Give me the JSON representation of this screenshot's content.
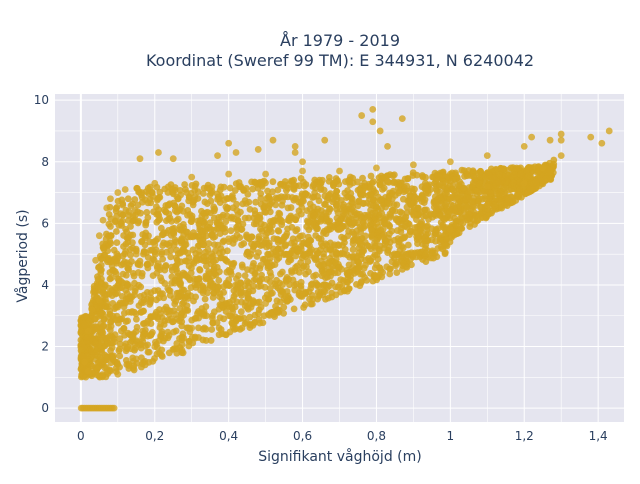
{
  "chart_data": {
    "type": "scatter",
    "title_line1": "År 1979 - 2019",
    "title_line2": "Koordinat (Sweref 99 TM): E 344931, N 6240042",
    "xlabel": "Signifikant våghöjd (m)",
    "ylabel": "Vågperiod (s)",
    "xlim": [
      -0.07,
      1.47
    ],
    "ylim": [
      -0.45,
      10.2
    ],
    "x_ticks": [
      0,
      0.2,
      0.4,
      0.6,
      0.8,
      1,
      1.2,
      1.4
    ],
    "x_tick_labels": [
      "0",
      "0,2",
      "0,4",
      "0,6",
      "0,8",
      "1",
      "1,2",
      "1,4"
    ],
    "y_ticks": [
      0,
      2,
      4,
      6,
      8,
      10
    ],
    "y_tick_labels": [
      "0",
      "2",
      "4",
      "6",
      "8",
      "10"
    ],
    "grid": true,
    "legend": "none",
    "colors": {
      "marker": "#d4a520",
      "plot_bg": "#e5e5ef",
      "grid": "#ffffff",
      "text": "#2a3f5f"
    },
    "series": [
      {
        "points": [
          [
            0.001,
            0
          ],
          [
            0.005,
            0
          ],
          [
            0.01,
            0
          ],
          [
            0.015,
            0
          ],
          [
            0.02,
            0
          ],
          [
            0.025,
            0
          ],
          [
            0.03,
            0
          ],
          [
            0.035,
            0
          ],
          [
            0.04,
            0
          ],
          [
            0.045,
            0
          ],
          [
            0.05,
            0
          ],
          [
            0.055,
            0
          ],
          [
            0.06,
            0
          ],
          [
            0.065,
            0
          ],
          [
            0.07,
            0
          ],
          [
            0.075,
            0
          ],
          [
            0.08,
            0
          ],
          [
            0.085,
            0
          ],
          [
            0.09,
            0
          ],
          [
            0.01,
            1.5
          ],
          [
            0.02,
            1.2
          ],
          [
            0.02,
            2.5
          ],
          [
            0.03,
            3.2
          ],
          [
            0.04,
            4.8
          ],
          [
            0.05,
            5.6
          ],
          [
            0.06,
            6.1
          ],
          [
            0.07,
            6.5
          ],
          [
            0.08,
            6.8
          ],
          [
            0.1,
            7.0
          ],
          [
            0.12,
            7.1
          ],
          [
            0.1,
            1.1
          ],
          [
            0.15,
            1.6
          ],
          [
            0.2,
            2.0
          ],
          [
            0.3,
            2.6
          ],
          [
            0.4,
            3.0
          ],
          [
            0.5,
            3.4
          ],
          [
            0.6,
            3.7
          ],
          [
            0.7,
            4.0
          ],
          [
            0.8,
            4.3
          ],
          [
            0.9,
            5.0
          ],
          [
            1.0,
            5.8
          ],
          [
            1.1,
            6.6
          ],
          [
            1.2,
            7.3
          ],
          [
            1.25,
            7.8
          ],
          [
            1.3,
            8.2
          ],
          [
            0.2,
            7.3
          ],
          [
            0.3,
            7.5
          ],
          [
            0.4,
            7.6
          ],
          [
            0.5,
            7.6
          ],
          [
            0.6,
            7.7
          ],
          [
            0.7,
            7.7
          ],
          [
            0.8,
            7.8
          ],
          [
            0.9,
            7.9
          ],
          [
            1.0,
            8.0
          ],
          [
            1.1,
            8.2
          ],
          [
            1.2,
            8.5
          ],
          [
            1.3,
            8.7
          ],
          [
            1.38,
            8.8
          ],
          [
            1.43,
            9.0
          ],
          [
            1.41,
            8.6
          ],
          [
            1.3,
            8.9
          ],
          [
            1.27,
            8.7
          ],
          [
            1.22,
            8.8
          ],
          [
            0.4,
            8.6
          ],
          [
            0.42,
            8.3
          ],
          [
            0.52,
            8.7
          ],
          [
            0.58,
            8.5
          ],
          [
            0.6,
            8.0
          ],
          [
            0.48,
            8.4
          ],
          [
            0.37,
            8.2
          ],
          [
            0.25,
            8.1
          ],
          [
            0.21,
            8.3
          ],
          [
            0.16,
            8.1
          ],
          [
            0.58,
            8.3
          ],
          [
            0.66,
            8.7
          ],
          [
            0.79,
            9.7
          ],
          [
            0.79,
            9.3
          ],
          [
            0.81,
            9.0
          ],
          [
            0.83,
            8.5
          ],
          [
            0.76,
            9.5
          ],
          [
            0.87,
            9.4
          ],
          [
            0.05,
            3.5
          ],
          [
            0.1,
            4.2
          ],
          [
            0.15,
            5.0
          ],
          [
            0.2,
            5.3
          ],
          [
            0.3,
            5.6
          ],
          [
            0.4,
            5.5
          ],
          [
            0.5,
            5.6
          ],
          [
            0.6,
            5.6
          ],
          [
            0.7,
            5.8
          ],
          [
            0.8,
            6.0
          ],
          [
            0.9,
            6.3
          ],
          [
            1.0,
            6.8
          ],
          [
            1.1,
            7.2
          ]
        ]
      }
    ]
  }
}
